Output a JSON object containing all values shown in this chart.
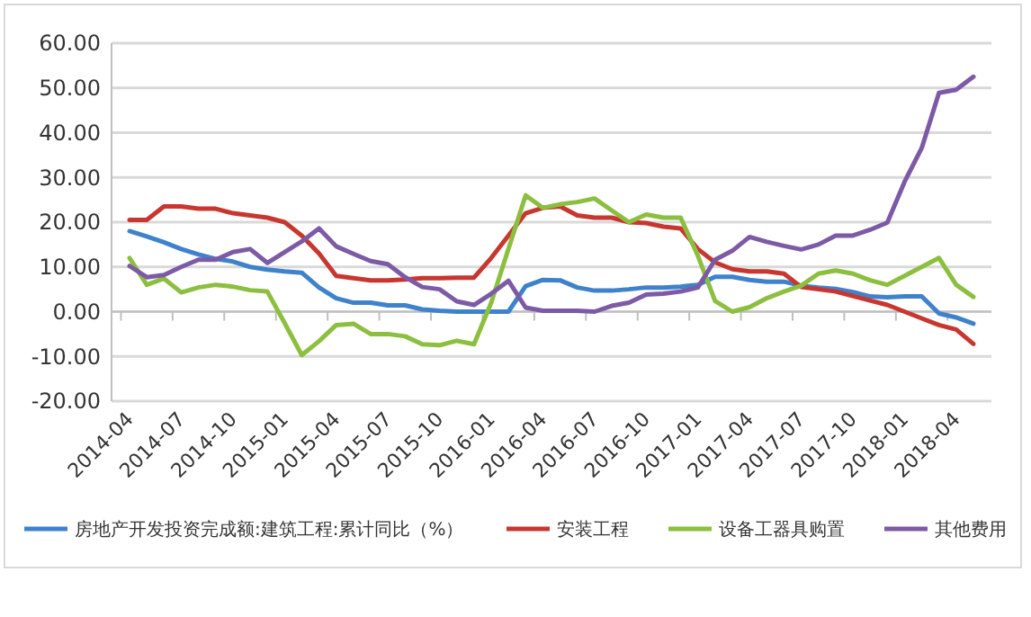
{
  "chart_data": {
    "type": "line",
    "categories": [
      "2014-04",
      null,
      null,
      "2014-07",
      null,
      null,
      "2014-10",
      null,
      null,
      "2015-01",
      null,
      null,
      "2015-04",
      null,
      null,
      "2015-07",
      null,
      null,
      "2015-10",
      null,
      null,
      "2016-01",
      null,
      null,
      "2016-04",
      null,
      null,
      "2016-07",
      null,
      null,
      "2016-10",
      null,
      null,
      "2017-01",
      null,
      null,
      "2017-04",
      null,
      null,
      "2017-07",
      null,
      null,
      "2017-10",
      null,
      null,
      "2018-01",
      null,
      null,
      "2018-04",
      null
    ],
    "series": [
      {
        "name": "房地产开发投资完成额:建筑工程:累计同比（%）",
        "color": "#3f82cc",
        "values": [
          18,
          16.8,
          15.5,
          14,
          12.8,
          11.8,
          11.2,
          10,
          9.4,
          9,
          8.7,
          5.4,
          3,
          2,
          2,
          1.4,
          1.4,
          0.5,
          0.2,
          0,
          0,
          0,
          0,
          5.7,
          7.1,
          7,
          5.4,
          4.7,
          4.7,
          5,
          5.4,
          5.4,
          5.6,
          6,
          7.8,
          7.8,
          7.1,
          6.7,
          6.7,
          5.8,
          5.4,
          5.1,
          4.4,
          3.4,
          3.2,
          3.4,
          3.4,
          -0.4,
          -1.3,
          -2.7
        ]
      },
      {
        "name": "安装工程",
        "color": "#c8372f",
        "values": [
          20.5,
          20.5,
          23.5,
          23.5,
          23,
          23,
          22,
          21.5,
          21,
          20,
          17,
          13,
          8,
          7.5,
          7,
          7,
          7.2,
          7.5,
          7.5,
          7.6,
          7.6,
          12,
          17,
          22,
          23.2,
          23.5,
          21.5,
          21,
          21,
          20,
          19.8,
          19,
          18.6,
          14,
          11,
          9.5,
          9,
          9,
          8.5,
          5.5,
          5,
          4.5,
          3.5,
          2.5,
          1.5,
          0,
          -1.5,
          -3,
          -4,
          -7.2
        ]
      },
      {
        "name": "设备工器具购置",
        "color": "#8cbf3f",
        "values": [
          12,
          6,
          7.4,
          4.3,
          5.4,
          6,
          5.6,
          4.8,
          4.5,
          -2.5,
          -9.7,
          -6.6,
          -3,
          -2.7,
          -5,
          -5,
          -5.5,
          -7.3,
          -7.5,
          -6.5,
          -7.3,
          2,
          14,
          26,
          23.2,
          24,
          24.5,
          25.3,
          22.6,
          20,
          21.7,
          21,
          21,
          12.5,
          2.4,
          0,
          1,
          3,
          4.5,
          5.8,
          8.5,
          9.2,
          8.5,
          7,
          6,
          8,
          10,
          12,
          6,
          3.3
        ]
      },
      {
        "name": "其他费用",
        "color": "#7d5aa6",
        "values": [
          10.2,
          7.7,
          8.2,
          10,
          11.6,
          11.6,
          13.3,
          14,
          10.9,
          13.3,
          15.7,
          18.6,
          14.6,
          12.9,
          11.3,
          10.6,
          7.7,
          5.5,
          5,
          2.3,
          1.5,
          4,
          6.9,
          0.9,
          0.2,
          0.2,
          0.2,
          0,
          1.3,
          2,
          3.8,
          4,
          4.5,
          5.4,
          11.6,
          13.6,
          16.7,
          15.6,
          14.7,
          13.9,
          15,
          17,
          17,
          18.3,
          19.9,
          29,
          36.6,
          48.9,
          49.6,
          52.5
        ]
      }
    ],
    "ylim": [
      -20,
      60
    ],
    "yticks": [
      {
        "value": -20,
        "label": "-20.00"
      },
      {
        "value": -10,
        "label": "-10.00"
      },
      {
        "value": 0,
        "label": "0.00"
      },
      {
        "value": 10,
        "label": "10.00"
      },
      {
        "value": 20,
        "label": "20.00"
      },
      {
        "value": 30,
        "label": "30.00"
      },
      {
        "value": 40,
        "label": "40.00"
      },
      {
        "value": 50,
        "label": "50.00"
      },
      {
        "value": 60,
        "label": "60.00"
      }
    ],
    "grid": "y",
    "legend": "bottom",
    "marker": "none",
    "line_style": "solid"
  }
}
